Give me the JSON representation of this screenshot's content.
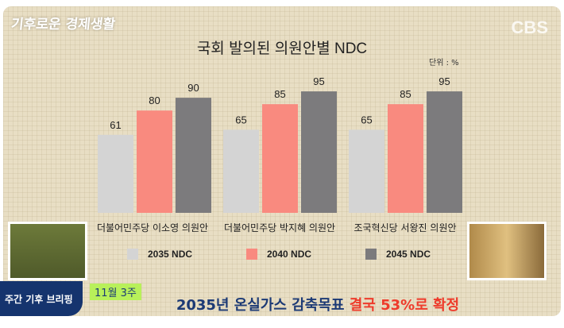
{
  "branding": {
    "show_logo": "기후로운 경제생활",
    "channel": "CBS"
  },
  "chart_data": {
    "type": "bar",
    "title": "국회 발의된 의원안별 NDC",
    "unit": "단위 : %",
    "categories": [
      "더불어민주당 이소영 의원안",
      "더불어민주당 박지혜 의원안",
      "조국혁신당 서왕진 의원안"
    ],
    "series": [
      {
        "name": "2035 NDC",
        "values": [
          61,
          65,
          65
        ],
        "color": "#d4d4d4"
      },
      {
        "name": "2040 NDC",
        "values": [
          80,
          85,
          85
        ],
        "color": "#f98a7f"
      },
      {
        "name": "2045 NDC",
        "values": [
          90,
          95,
          95
        ],
        "color": "#7c7b7d"
      }
    ],
    "ylim": [
      0,
      100
    ],
    "grid": false,
    "legend": "bottom"
  },
  "ticker": {
    "segment": "주간 기후 브리핑",
    "week": "11월 3주",
    "headline_main": "2035년 온실가스 감축목표 ",
    "headline_accent": "결국 53%로 확정"
  }
}
